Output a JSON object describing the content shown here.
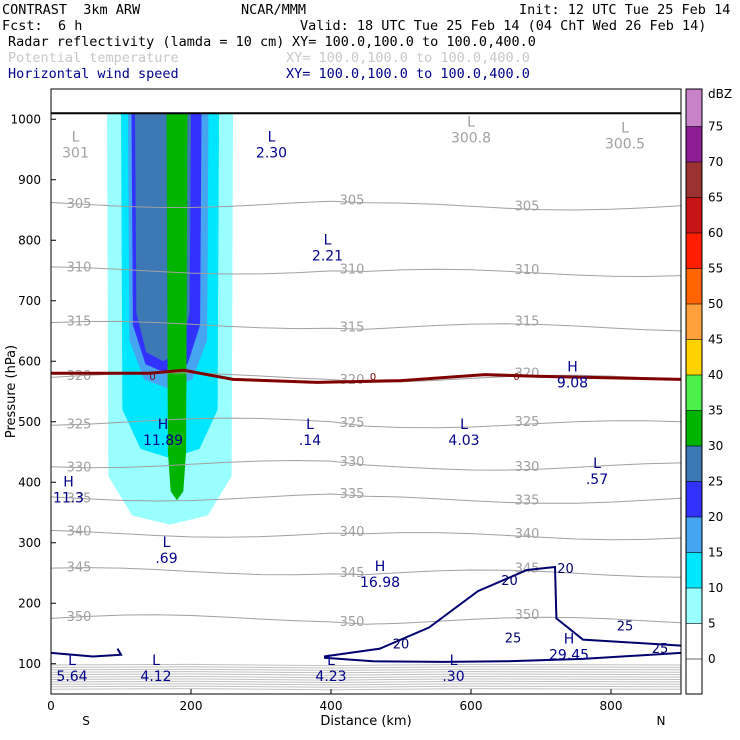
{
  "header": {
    "model": "CONTRAST  3km ARW",
    "org": "NCAR/MMM",
    "init": "Init: 12 UTC Tue 25 Feb 14",
    "fcst_label": "Fcst:",
    "fcst_value": "6 h",
    "valid": "Valid: 18 UTC Tue 25 Feb 14 (04 ChT Wed 26 Feb 14)",
    "fields": [
      {
        "name": "Radar reflectivity (lamda = 10 cm)",
        "xy": "XY= 100.0,100.0 to 100.0,400.0",
        "color": "#000000"
      },
      {
        "name": "Potential temperature",
        "xy": "XY= 100.0,100.0 to 100.0,400.0",
        "color": "#c8c8c8"
      },
      {
        "name": "Horizontal wind speed",
        "xy": "XY= 100.0,100.0 to 100.0,400.0",
        "color": "#00008b"
      }
    ]
  },
  "chart_data": {
    "type": "cross-section",
    "xlabel": "Distance (km)",
    "ylabel": "Pressure (hPa)",
    "xlim": [
      0,
      900
    ],
    "ylim": [
      1050,
      50
    ],
    "x_ticks": [
      0,
      200,
      400,
      600,
      800
    ],
    "y_ticks": [
      100,
      200,
      300,
      400,
      500,
      600,
      700,
      800,
      900,
      1000
    ],
    "x_end_labels": {
      "left": "S",
      "right": "N"
    },
    "colorbar": {
      "unit": "dBZ",
      "levels": [
        "0",
        "5",
        "10",
        "15",
        "20",
        "25",
        "30",
        "35",
        "40",
        "45",
        "50",
        "55",
        "60",
        "65",
        "70",
        "75"
      ],
      "colors": [
        "#ffffff",
        "#99ffff",
        "#00e6ff",
        "#46a5f0",
        "#3232ff",
        "#3c78b4",
        "#00b400",
        "#4bf04b",
        "#ffd200",
        "#ffa03c",
        "#ff6400",
        "#ff1e00",
        "#c81414",
        "#9b3232",
        "#8c1e96",
        "#c882c8"
      ]
    },
    "reflectivity_cells": [
      {
        "x": [
          80,
          260
        ],
        "p_top": 330,
        "dbz": 5
      },
      {
        "x": [
          100,
          240
        ],
        "p_top": 440,
        "dbz": 10
      },
      {
        "x": [
          110,
          225
        ],
        "p_top": 555,
        "dbz": 15
      },
      {
        "x": [
          115,
          215
        ],
        "p_top": 580,
        "dbz": 20
      },
      {
        "x": [
          120,
          200
        ],
        "p_top": 600,
        "dbz": 25
      },
      {
        "x": [
          165,
          195
        ],
        "p_top": 370,
        "dbz": 30
      }
    ],
    "theta_contours": [
      {
        "value": "350",
        "p": 175
      },
      {
        "value": "345",
        "p": 253
      },
      {
        "value": "340",
        "p": 315
      },
      {
        "value": "335",
        "p": 375
      },
      {
        "value": "330",
        "p": 430
      },
      {
        "value": "325",
        "p": 500
      },
      {
        "value": "320",
        "p": 575
      },
      {
        "value": "315",
        "p": 660
      },
      {
        "value": "310",
        "p": 750
      },
      {
        "value": "305",
        "p": 860
      }
    ],
    "wind_contours": [
      "20",
      "25"
    ],
    "freezing_line": {
      "label": "0",
      "p": 580
    },
    "extrema_labels": [
      {
        "t": "L",
        "v": "5.64",
        "x": 30,
        "p": 95,
        "c": "blue"
      },
      {
        "t": "L",
        "v": "4.12",
        "x": 150,
        "p": 95,
        "c": "blue"
      },
      {
        "t": "L",
        "v": "4.23",
        "x": 400,
        "p": 95,
        "c": "blue"
      },
      {
        "t": "L",
        "v": ".30",
        "x": 575,
        "p": 95,
        "c": "blue"
      },
      {
        "t": "H",
        "v": "29.45",
        "x": 740,
        "p": 130,
        "c": "blue"
      },
      {
        "t": "H",
        "v": "16.98",
        "x": 470,
        "p": 250,
        "c": "blue"
      },
      {
        "t": "L",
        "v": ".69",
        "x": 165,
        "p": 290,
        "c": "blue"
      },
      {
        "t": "H",
        "v": "11.3",
        "x": 25,
        "p": 390,
        "c": "blue"
      },
      {
        "t": "L",
        "v": ".57",
        "x": 780,
        "p": 420,
        "c": "blue"
      },
      {
        "t": "H",
        "v": "11.89",
        "x": 160,
        "p": 485,
        "c": "blue"
      },
      {
        "t": "L",
        "v": ".14",
        "x": 370,
        "p": 485,
        "c": "blue"
      },
      {
        "t": "L",
        "v": "4.03",
        "x": 590,
        "p": 485,
        "c": "blue"
      },
      {
        "t": "H",
        "v": "9.08",
        "x": 745,
        "p": 580,
        "c": "blue"
      },
      {
        "t": "L",
        "v": "2.21",
        "x": 395,
        "p": 790,
        "c": "blue"
      },
      {
        "t": "L",
        "v": "2.30",
        "x": 315,
        "p": 960,
        "c": "blue"
      },
      {
        "t": "L",
        "v": "301",
        "x": 35,
        "p": 960,
        "c": "gray"
      },
      {
        "t": "L",
        "v": "300.8",
        "x": 600,
        "p": 985,
        "c": "gray"
      },
      {
        "t": "L",
        "v": "300.5",
        "x": 820,
        "p": 975,
        "c": "gray"
      }
    ]
  }
}
